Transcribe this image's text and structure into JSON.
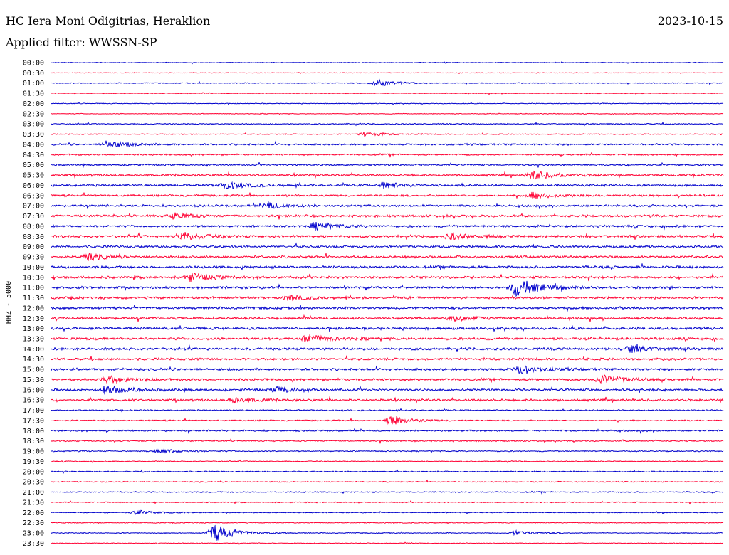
{
  "header": {
    "station": "HC Iera Moni Odigitrias, Heraklion",
    "filter": "Applied filter: WWSSN-SP",
    "date": "2023-10-15"
  },
  "colors": {
    "trace_a": "#0000cc",
    "trace_b": "#ff0033",
    "background": "#ffffff",
    "text": "#000000"
  },
  "chart_data": {
    "type": "line",
    "ylabel": "HHZ - 5000",
    "rows": [
      "00:00",
      "00:30",
      "01:00",
      "01:30",
      "02:00",
      "02:30",
      "03:00",
      "03:30",
      "04:00",
      "04:30",
      "05:00",
      "05:30",
      "06:00",
      "06:30",
      "07:00",
      "07:30",
      "08:00",
      "08:30",
      "09:00",
      "09:30",
      "10:00",
      "10:30",
      "11:00",
      "11:30",
      "12:00",
      "12:30",
      "13:00",
      "13:30",
      "14:00",
      "14:30",
      "15:00",
      "15:30",
      "16:00",
      "16:30",
      "17:00",
      "17:30",
      "18:00",
      "18:30",
      "19:00",
      "19:30",
      "20:00",
      "20:30",
      "21:00",
      "21:30",
      "22:00",
      "22:30",
      "23:00",
      "23:30"
    ],
    "row_color_pattern": [
      "trace_a",
      "trace_b"
    ],
    "noise_level": [
      0.5,
      0.4,
      0.6,
      0.5,
      0.5,
      0.5,
      0.8,
      0.7,
      1.2,
      1.1,
      1.2,
      1.4,
      1.5,
      1.4,
      1.5,
      1.6,
      1.5,
      1.7,
      1.6,
      1.6,
      1.7,
      1.7,
      1.6,
      1.6,
      1.6,
      1.6,
      1.7,
      1.7,
      1.7,
      1.6,
      1.6,
      1.6,
      1.6,
      1.5,
      0.9,
      0.9,
      1.1,
      0.9,
      0.8,
      0.7,
      0.8,
      0.7,
      0.8,
      0.7,
      0.6,
      0.6,
      0.6,
      0.5
    ],
    "events": [
      {
        "row": "01:00",
        "minute": 14.5,
        "amplitude": 5
      },
      {
        "row": "03:30",
        "minute": 14.0,
        "amplitude": 3
      },
      {
        "row": "04:00",
        "minute": 2.5,
        "amplitude": 5
      },
      {
        "row": "05:30",
        "minute": 21.5,
        "amplitude": 6
      },
      {
        "row": "06:00",
        "minute": 7.8,
        "amplitude": 5
      },
      {
        "row": "06:00",
        "minute": 14.8,
        "amplitude": 4
      },
      {
        "row": "06:30",
        "minute": 21.5,
        "amplitude": 4
      },
      {
        "row": "07:00",
        "minute": 9.7,
        "amplitude": 4
      },
      {
        "row": "07:30",
        "minute": 5.5,
        "amplitude": 4
      },
      {
        "row": "08:00",
        "minute": 11.8,
        "amplitude": 5
      },
      {
        "row": "08:30",
        "minute": 5.8,
        "amplitude": 6
      },
      {
        "row": "08:30",
        "minute": 17.8,
        "amplitude": 4
      },
      {
        "row": "09:30",
        "minute": 1.7,
        "amplitude": 4
      },
      {
        "row": "10:30",
        "minute": 6.2,
        "amplitude": 6
      },
      {
        "row": "11:00",
        "minute": 20.8,
        "amplitude": 13
      },
      {
        "row": "11:30",
        "minute": 10.6,
        "amplitude": 3
      },
      {
        "row": "12:30",
        "minute": 18.0,
        "amplitude": 4
      },
      {
        "row": "13:30",
        "minute": 11.5,
        "amplitude": 5
      },
      {
        "row": "14:00",
        "minute": 25.9,
        "amplitude": 5
      },
      {
        "row": "15:00",
        "minute": 20.9,
        "amplitude": 6
      },
      {
        "row": "15:30",
        "minute": 2.6,
        "amplitude": 5
      },
      {
        "row": "15:30",
        "minute": 24.6,
        "amplitude": 7
      },
      {
        "row": "16:00",
        "minute": 2.5,
        "amplitude": 6
      },
      {
        "row": "16:00",
        "minute": 10.1,
        "amplitude": 4
      },
      {
        "row": "16:30",
        "minute": 8.2,
        "amplitude": 4
      },
      {
        "row": "17:30",
        "minute": 15.2,
        "amplitude": 6
      },
      {
        "row": "19:00",
        "minute": 4.9,
        "amplitude": 3
      },
      {
        "row": "22:00",
        "minute": 3.8,
        "amplitude": 3
      },
      {
        "row": "23:00",
        "minute": 7.3,
        "amplitude": 12
      },
      {
        "row": "23:00",
        "minute": 20.7,
        "amplitude": 3
      }
    ]
  }
}
